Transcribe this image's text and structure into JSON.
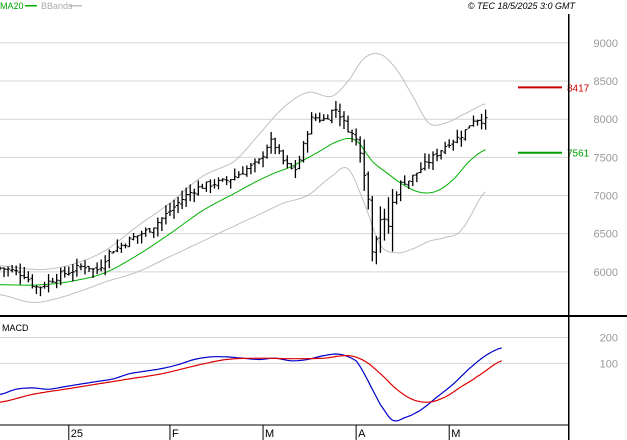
{
  "header": {
    "ma_label": "MA20",
    "bbands_label": "BBands",
    "copyright": "© TEC 18/5/2025 3:0 GMT",
    "macd_label": "MACD"
  },
  "colors": {
    "price": "#000000",
    "ma20": "#00b000",
    "bbands": "#c0c0c0",
    "macd": "#0000cc",
    "signal": "#dd0000",
    "resistance": "#cc0000",
    "support": "#00a000",
    "grid": "#d4d4d4",
    "axis": "#000000",
    "tick_text": "#999999"
  },
  "chart_data": [
    {
      "type": "line",
      "panel": "price",
      "style": "ohlc-bars",
      "ylim": [
        5500,
        9300
      ],
      "yticks": [
        6000,
        6500,
        7000,
        7500,
        8000,
        8500,
        9000
      ],
      "ytick_labels": [
        "6000",
        "6500",
        "7000",
        "7500",
        "8000",
        "8500",
        "9000"
      ],
      "xlim": [
        0,
        128
      ],
      "x_ticks": [
        {
          "x": 17,
          "label": "25"
        },
        {
          "x": 42,
          "label": "F"
        },
        {
          "x": 65,
          "label": "M"
        },
        {
          "x": 88,
          "label": "A"
        },
        {
          "x": 111,
          "label": "M"
        }
      ],
      "levels": [
        {
          "name": "resistance",
          "value": 8417,
          "label": "8417"
        },
        {
          "name": "support",
          "value": 7561,
          "label": "7561"
        }
      ],
      "close_anchors": [
        [
          0,
          6050
        ],
        [
          6,
          5960
        ],
        [
          9,
          5800
        ],
        [
          12,
          5870
        ],
        [
          15,
          5960
        ],
        [
          18,
          6020
        ],
        [
          21,
          6080
        ],
        [
          24,
          6030
        ],
        [
          27,
          6250
        ],
        [
          30,
          6350
        ],
        [
          33,
          6450
        ],
        [
          37,
          6560
        ],
        [
          40,
          6700
        ],
        [
          43,
          6850
        ],
        [
          46,
          7000
        ],
        [
          49,
          7100
        ],
        [
          52,
          7150
        ],
        [
          55,
          7180
        ],
        [
          58,
          7250
        ],
        [
          61,
          7350
        ],
        [
          64,
          7450
        ],
        [
          67,
          7700
        ],
        [
          70,
          7450
        ],
        [
          73,
          7350
        ],
        [
          75,
          7650
        ],
        [
          77,
          8000
        ],
        [
          80,
          8000
        ],
        [
          83,
          8130
        ],
        [
          85,
          7950
        ],
        [
          87,
          7800
        ],
        [
          89,
          7600
        ],
        [
          91,
          6950
        ],
        [
          92,
          6300
        ],
        [
          94,
          6700
        ],
        [
          96,
          6600
        ],
        [
          97,
          6900
        ],
        [
          99,
          7150
        ],
        [
          101,
          7200
        ],
        [
          103,
          7300
        ],
        [
          105,
          7400
        ],
        [
          107,
          7500
        ],
        [
          109,
          7600
        ],
        [
          111,
          7700
        ],
        [
          113,
          7750
        ],
        [
          115,
          7850
        ],
        [
          117,
          8000
        ],
        [
          120,
          7980
        ]
      ],
      "ma20_anchors": [
        [
          0,
          5830
        ],
        [
          10,
          5830
        ],
        [
          18,
          5880
        ],
        [
          26,
          5990
        ],
        [
          34,
          6220
        ],
        [
          42,
          6500
        ],
        [
          50,
          6800
        ],
        [
          58,
          7030
        ],
        [
          66,
          7250
        ],
        [
          72,
          7380
        ],
        [
          78,
          7550
        ],
        [
          84,
          7720
        ],
        [
          88,
          7720
        ],
        [
          92,
          7450
        ],
        [
          96,
          7280
        ],
        [
          100,
          7130
        ],
        [
          104,
          7040
        ],
        [
          108,
          7060
        ],
        [
          112,
          7210
        ],
        [
          116,
          7450
        ],
        [
          120,
          7600
        ]
      ],
      "bband_upper_anchors": [
        [
          0,
          6080
        ],
        [
          10,
          6030
        ],
        [
          18,
          6100
        ],
        [
          26,
          6280
        ],
        [
          34,
          6600
        ],
        [
          42,
          6900
        ],
        [
          50,
          7250
        ],
        [
          58,
          7450
        ],
        [
          64,
          7800
        ],
        [
          70,
          8150
        ],
        [
          76,
          8350
        ],
        [
          82,
          8300
        ],
        [
          86,
          8500
        ],
        [
          90,
          8800
        ],
        [
          94,
          8850
        ],
        [
          98,
          8650
        ],
        [
          102,
          8300
        ],
        [
          106,
          7950
        ],
        [
          110,
          7950
        ],
        [
          114,
          8050
        ],
        [
          120,
          8200
        ]
      ],
      "bband_lower_anchors": [
        [
          0,
          5700
        ],
        [
          8,
          5600
        ],
        [
          14,
          5650
        ],
        [
          20,
          5750
        ],
        [
          26,
          5870
        ],
        [
          34,
          6000
        ],
        [
          42,
          6200
        ],
        [
          50,
          6400
        ],
        [
          58,
          6600
        ],
        [
          64,
          6750
        ],
        [
          70,
          6900
        ],
        [
          76,
          7000
        ],
        [
          82,
          7250
        ],
        [
          86,
          7350
        ],
        [
          90,
          6900
        ],
        [
          94,
          6350
        ],
        [
          98,
          6250
        ],
        [
          102,
          6300
        ],
        [
          106,
          6400
        ],
        [
          110,
          6450
        ],
        [
          114,
          6550
        ],
        [
          120,
          7050
        ]
      ]
    },
    {
      "type": "line",
      "panel": "macd",
      "ylim": [
        -150,
        260
      ],
      "yticks": [
        100,
        200
      ],
      "ytick_labels": [
        "100",
        "200"
      ],
      "xlim": [
        0,
        128
      ],
      "series": [
        {
          "name": "MACD",
          "color_key": "macd",
          "anchors": [
            [
              0,
              -20
            ],
            [
              4,
              0
            ],
            [
              8,
              5
            ],
            [
              12,
              0
            ],
            [
              16,
              10
            ],
            [
              20,
              20
            ],
            [
              24,
              30
            ],
            [
              28,
              40
            ],
            [
              32,
              60
            ],
            [
              36,
              70
            ],
            [
              40,
              80
            ],
            [
              44,
              95
            ],
            [
              48,
              115
            ],
            [
              52,
              125
            ],
            [
              56,
              125
            ],
            [
              60,
              120
            ],
            [
              64,
              115
            ],
            [
              68,
              120
            ],
            [
              72,
              110
            ],
            [
              76,
              115
            ],
            [
              80,
              130
            ],
            [
              84,
              135
            ],
            [
              88,
              110
            ],
            [
              90,
              60
            ],
            [
              92,
              0
            ],
            [
              94,
              -60
            ],
            [
              97,
              -120
            ],
            [
              100,
              -110
            ],
            [
              104,
              -80
            ],
            [
              108,
              -30
            ],
            [
              112,
              20
            ],
            [
              116,
              80
            ],
            [
              120,
              130
            ],
            [
              124,
              160
            ]
          ]
        },
        {
          "name": "Signal",
          "color_key": "signal",
          "anchors": [
            [
              0,
              -50
            ],
            [
              8,
              -20
            ],
            [
              16,
              0
            ],
            [
              24,
              20
            ],
            [
              32,
              40
            ],
            [
              40,
              60
            ],
            [
              48,
              90
            ],
            [
              56,
              115
            ],
            [
              64,
              120
            ],
            [
              72,
              118
            ],
            [
              80,
              120
            ],
            [
              86,
              130
            ],
            [
              90,
              110
            ],
            [
              94,
              60
            ],
            [
              98,
              0
            ],
            [
              102,
              -40
            ],
            [
              106,
              -50
            ],
            [
              110,
              -30
            ],
            [
              114,
              10
            ],
            [
              118,
              50
            ],
            [
              124,
              110
            ]
          ]
        }
      ]
    }
  ]
}
